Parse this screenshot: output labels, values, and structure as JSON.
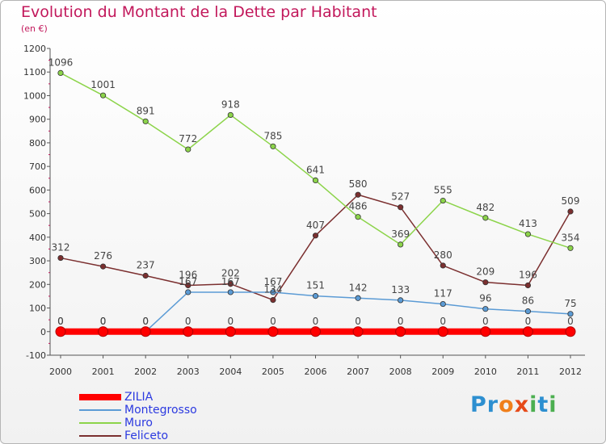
{
  "title": "Evolution du Montant de la Dette par Habitant",
  "subtitle": "(en €)",
  "logo": {
    "text": "Proxiti",
    "letters": [
      "P",
      "r",
      "o",
      "x",
      "i",
      "t",
      "i"
    ],
    "colors": [
      "#2d8fd0",
      "#2d8fd0",
      "#f07f1b",
      "#e64a19",
      "#4caf50",
      "#2d8fd0",
      "#4caf50"
    ]
  },
  "chart_data": {
    "type": "line",
    "categories": [
      "2000",
      "2001",
      "2002",
      "2003",
      "2004",
      "2005",
      "2006",
      "2007",
      "2008",
      "2009",
      "2010",
      "2011",
      "2012"
    ],
    "ylim": [
      -100,
      1200
    ],
    "yticks": [
      -100,
      0,
      100,
      200,
      300,
      400,
      500,
      600,
      700,
      800,
      900,
      1000,
      1100,
      1200
    ],
    "grid": false,
    "legend_position": "bottom-left",
    "series": [
      {
        "name": "ZILIA",
        "color": "#ff0000",
        "values": [
          0,
          0,
          0,
          0,
          0,
          0,
          0,
          0,
          0,
          0,
          0,
          0,
          0
        ],
        "labels": [
          "0",
          "0",
          "0",
          "0",
          "0",
          "0",
          "0",
          "0",
          "0",
          "0",
          "0",
          "0",
          "0"
        ]
      },
      {
        "name": "Montegrosso",
        "color": "#5b9bd5",
        "values": [
          0,
          0,
          0,
          167,
          167,
          167,
          151,
          142,
          133,
          117,
          96,
          86,
          75
        ],
        "labels": [
          "0",
          "0",
          "0",
          "167",
          "167",
          "167",
          "151",
          "142",
          "133",
          "117",
          "96",
          "86",
          "75"
        ]
      },
      {
        "name": "Muro",
        "color": "#8cd44a",
        "values": [
          1096,
          1001,
          891,
          772,
          918,
          785,
          641,
          486,
          369,
          555,
          482,
          413,
          354
        ],
        "labels": [
          "1096",
          "1001",
          "891",
          "772",
          "918",
          "785",
          "641",
          "486",
          "369",
          "555",
          "482",
          "413",
          "354"
        ]
      },
      {
        "name": "Feliceto",
        "color": "#7b2f2f",
        "values": [
          312,
          276,
          237,
          196,
          202,
          134,
          407,
          580,
          527,
          280,
          209,
          196,
          509
        ],
        "labels": [
          "312",
          "276",
          "237",
          "196",
          "202",
          "134",
          "407",
          "580",
          "527",
          "280",
          "209",
          "196",
          "509"
        ]
      }
    ]
  }
}
